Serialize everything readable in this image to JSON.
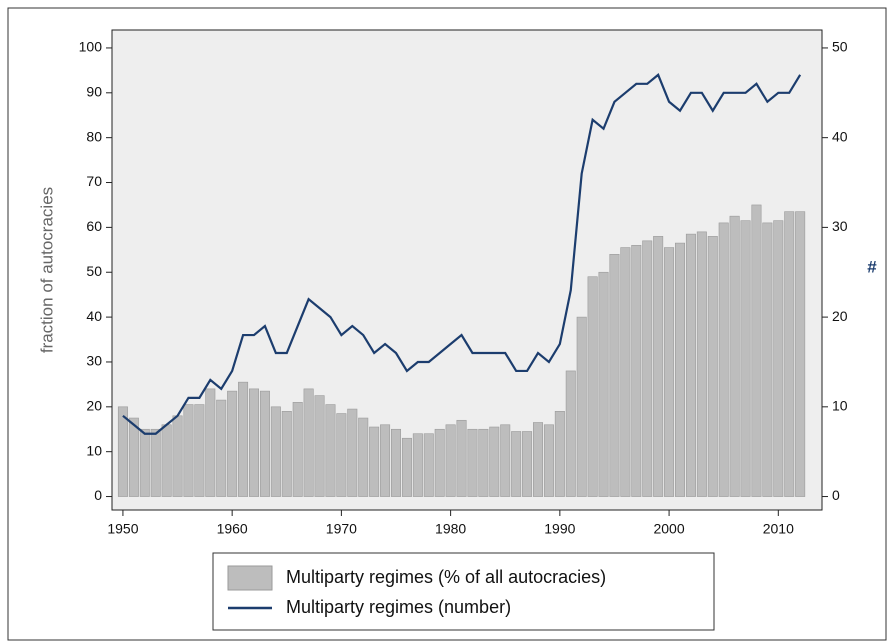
{
  "chart_data": {
    "type": "bar_line",
    "y_label": "fraction of autocracies",
    "y2_label": "#",
    "x": [
      1950,
      1951,
      1952,
      1953,
      1954,
      1955,
      1956,
      1957,
      1958,
      1959,
      1960,
      1961,
      1962,
      1963,
      1964,
      1965,
      1966,
      1967,
      1968,
      1969,
      1970,
      1971,
      1972,
      1973,
      1974,
      1975,
      1976,
      1977,
      1978,
      1979,
      1980,
      1981,
      1982,
      1983,
      1984,
      1985,
      1986,
      1987,
      1988,
      1989,
      1990,
      1991,
      1992,
      1993,
      1994,
      1995,
      1996,
      1997,
      1998,
      1999,
      2000,
      2001,
      2002,
      2003,
      2004,
      2005,
      2006,
      2007,
      2008,
      2009,
      2010,
      2011,
      2012
    ],
    "series": [
      {
        "name": "Multiparty regimes (% of all autocracies)",
        "type": "bar",
        "axis": "y",
        "color": "#bdbdbd",
        "values": [
          20,
          17.5,
          15,
          15,
          16,
          18,
          20.5,
          20.5,
          24,
          21.5,
          23.5,
          25.5,
          24,
          23.5,
          20,
          19,
          21,
          24,
          22.5,
          20.5,
          18.5,
          19.5,
          17.5,
          15.5,
          16,
          15,
          13,
          14,
          14,
          15,
          16,
          17,
          15,
          15,
          15.5,
          16,
          14.5,
          14.5,
          16.5,
          16,
          19,
          28,
          40,
          49,
          50,
          54,
          55.5,
          56,
          57,
          58,
          55.5,
          56.5,
          58.5,
          59,
          58,
          61,
          62.5,
          61.5,
          65,
          61,
          61.5,
          63.5,
          63.5
        ]
      },
      {
        "name": "Multiparty regimes (number)",
        "type": "line",
        "axis": "y2",
        "color": "#1c3d6e",
        "values": [
          9,
          8,
          7,
          7,
          8,
          9,
          11,
          11,
          13,
          12,
          14,
          18,
          18,
          19,
          16,
          16,
          19,
          22,
          21,
          20,
          18,
          19,
          18,
          16,
          17,
          16,
          14,
          15,
          15,
          16,
          17,
          18,
          16,
          16,
          16,
          16,
          14,
          14,
          16,
          15,
          17,
          23,
          36,
          42,
          41,
          44,
          45,
          46,
          46,
          47,
          44,
          43,
          45,
          45,
          43,
          45,
          45,
          45,
          46,
          44,
          45,
          45,
          47
        ]
      }
    ],
    "xlim": [
      1949,
      2014
    ],
    "xticks": [
      1950,
      1960,
      1970,
      1980,
      1990,
      2000,
      2010
    ],
    "ylim": [
      -3,
      104
    ],
    "yticks": [
      0,
      10,
      20,
      30,
      40,
      50,
      60,
      70,
      80,
      90,
      100
    ],
    "y2lim": [
      -1.5,
      52
    ],
    "y2ticks": [
      0,
      10,
      20,
      30,
      40,
      50
    ],
    "grid": false
  }
}
